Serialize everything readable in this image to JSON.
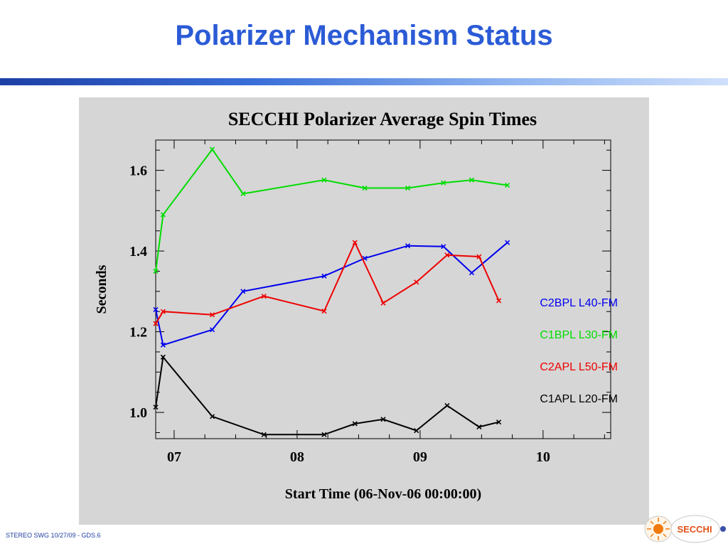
{
  "slide": {
    "title": "Polarizer Mechanism Status",
    "footer": "STEREO SWG 10/27/09 - GDS.6",
    "logo_text": "SECCHI"
  },
  "colors": {
    "title": "#2b5bd6",
    "panel": "#d6d6d6",
    "C2BPL": "#0000ee",
    "C1BPL": "#00dd00",
    "C2APL": "#ee0000",
    "C1APL": "#000000"
  },
  "chart_data": {
    "type": "line",
    "title": "SECCHI Polarizer Average Spin Times",
    "xlabel": "Start Time (06-Nov-06 00:00:00)",
    "ylabel": "Seconds",
    "xlim": [
      6.85,
      10.55
    ],
    "ylim": [
      0.935,
      1.675
    ],
    "xticks": [
      7,
      8,
      9,
      10
    ],
    "xtick_labels": [
      "07",
      "08",
      "09",
      "10"
    ],
    "yticks": [
      1.0,
      1.2,
      1.4,
      1.6
    ],
    "ytick_labels": [
      "1.0",
      "1.2",
      "1.4",
      "1.6"
    ],
    "legend_position": "right",
    "series": [
      {
        "name": "C2BPL L40-FM",
        "color": "#0000ee",
        "x": [
          6.85,
          6.91,
          7.31,
          7.56,
          8.22,
          8.55,
          8.9,
          9.19,
          9.42,
          9.71
        ],
        "y": [
          1.255,
          1.167,
          1.205,
          1.3,
          1.338,
          1.382,
          1.413,
          1.411,
          1.346,
          1.421
        ]
      },
      {
        "name": "C1BPL L30-FM",
        "color": "#00dd00",
        "x": [
          6.85,
          6.91,
          7.31,
          7.56,
          8.22,
          8.55,
          8.9,
          9.19,
          9.42,
          9.71
        ],
        "y": [
          1.35,
          1.49,
          1.652,
          1.542,
          1.576,
          1.556,
          1.556,
          1.569,
          1.576,
          1.563
        ]
      },
      {
        "name": "C2APL L50-FM",
        "color": "#ee0000",
        "x": [
          6.85,
          6.91,
          7.31,
          7.73,
          8.22,
          8.47,
          8.7,
          8.97,
          9.22,
          9.48,
          9.64
        ],
        "y": [
          1.22,
          1.25,
          1.242,
          1.288,
          1.251,
          1.421,
          1.271,
          1.323,
          1.39,
          1.386,
          1.277
        ]
      },
      {
        "name": "C1APL L20-FM",
        "color": "#000000",
        "x": [
          6.85,
          6.91,
          7.31,
          7.73,
          8.22,
          8.47,
          8.7,
          8.97,
          9.22,
          9.48,
          9.64
        ],
        "y": [
          1.013,
          1.137,
          0.99,
          0.945,
          0.945,
          0.972,
          0.983,
          0.955,
          1.017,
          0.964,
          0.976
        ]
      }
    ]
  }
}
